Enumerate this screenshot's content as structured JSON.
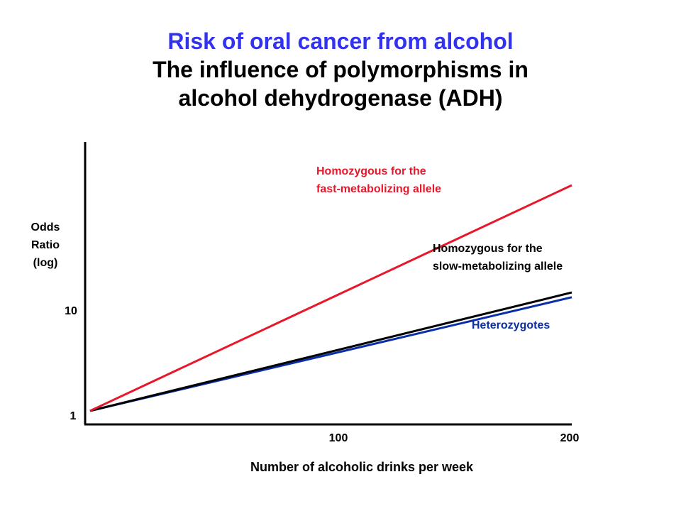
{
  "title": "Risk of oral cancer from alcohol",
  "subtitle_lines": [
    "The influence of polymorphisms in",
    "alcohol dehydrogenase (ADH)"
  ],
  "chart_data": {
    "type": "line",
    "xlabel": "Number of alcoholic drinks per week",
    "ylabel_lines": [
      "Odds",
      "Ratio",
      "(log)"
    ],
    "y_scale": "log",
    "x_ticks": [
      100,
      200
    ],
    "y_ticks": [
      1,
      10
    ],
    "xlim": [
      0,
      200
    ],
    "ylim_decades": [
      0,
      2.22
    ],
    "series": [
      {
        "name_lines": [
          "Homozygous for the",
          "fast-metabolizing allele"
        ],
        "color": "#e8182c",
        "x": [
          2,
          200
        ],
        "y": [
          1.1,
          160
        ]
      },
      {
        "name_lines": [
          "Homozygous for the",
          "slow-metabolizing allele"
        ],
        "color": "#000000",
        "x": [
          2,
          200
        ],
        "y": [
          1.1,
          15
        ]
      },
      {
        "name_lines": [
          "Heterozygotes"
        ],
        "color": "#0a2ea8",
        "x": [
          2,
          200
        ],
        "y": [
          1.1,
          13.5
        ]
      }
    ],
    "grid": false,
    "legend": "inline labels"
  }
}
